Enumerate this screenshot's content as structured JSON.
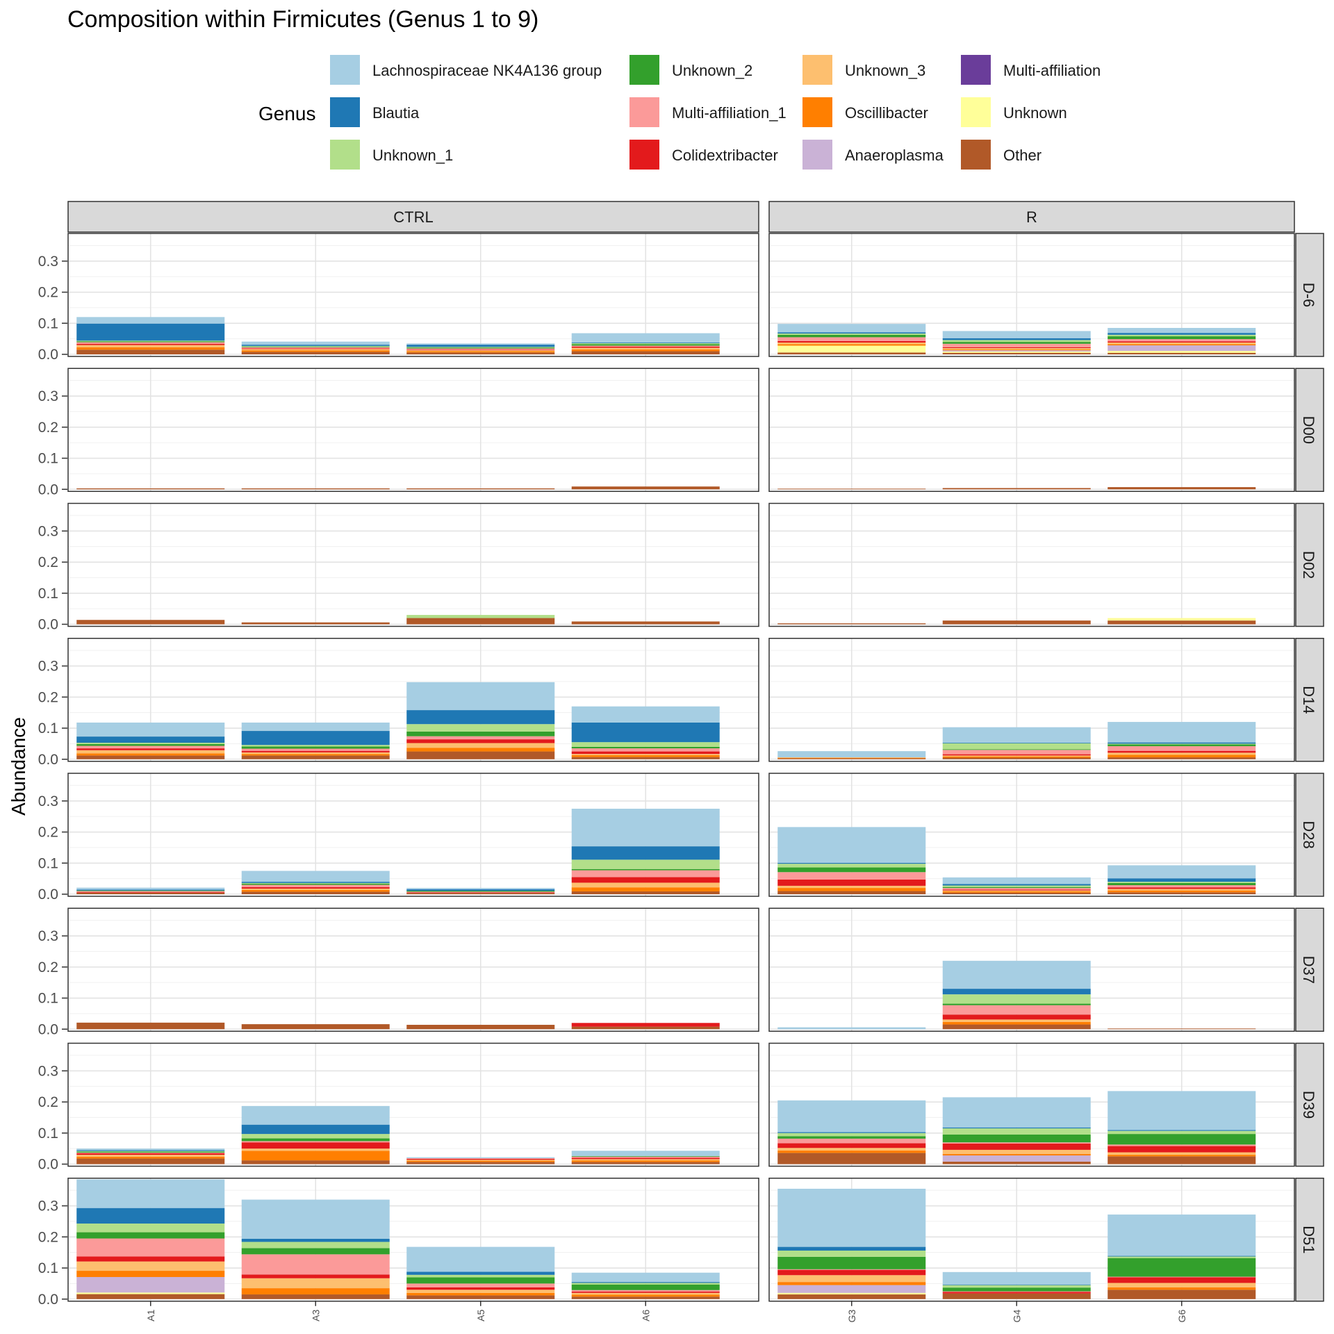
{
  "chart_data": {
    "type": "bar",
    "stacked": true,
    "title": "Composition within Firmicutes (Genus 1 to 9)",
    "ylabel": "Abundance",
    "xlabel": "",
    "ylim": [
      0,
      0.38
    ],
    "yticks": [
      0.0,
      0.1,
      0.2,
      0.3
    ],
    "yticks_text": [
      "0.0",
      "0.1",
      "0.2",
      "0.3"
    ],
    "grid": true,
    "legend": {
      "title": "Genus",
      "position": "top",
      "entries": [
        {
          "key": "lach",
          "label": "Lachnospiraceae NK4A136 group",
          "color": "#A6CEE3"
        },
        {
          "key": "blau",
          "label": "Blautia",
          "color": "#1F78B4"
        },
        {
          "key": "unk1",
          "label": "Unknown_1",
          "color": "#B2DF8A"
        },
        {
          "key": "unk2",
          "label": "Unknown_2",
          "color": "#33A02C"
        },
        {
          "key": "ma1",
          "label": "Multi-affiliation_1",
          "color": "#FB9A99"
        },
        {
          "key": "coli",
          "label": "Colidextribacter",
          "color": "#E31A1C"
        },
        {
          "key": "unk3",
          "label": "Unknown_3",
          "color": "#FDBF6F"
        },
        {
          "key": "osc",
          "label": "Oscillibacter",
          "color": "#FF7F00"
        },
        {
          "key": "anae",
          "label": "Anaeroplasma",
          "color": "#CAB2D6"
        },
        {
          "key": "ma",
          "label": "Multi-affiliation",
          "color": "#6A3D9A"
        },
        {
          "key": "unk",
          "label": "Unknown",
          "color": "#FFFF99"
        },
        {
          "key": "oth",
          "label": "Other",
          "color": "#B15928"
        }
      ]
    },
    "stack_order_bottom_up": [
      "oth",
      "unk",
      "ma",
      "anae",
      "osc",
      "unk3",
      "coli",
      "ma1",
      "unk2",
      "unk1",
      "blau",
      "lach"
    ],
    "facet_columns": [
      {
        "label": "CTRL",
        "samples": [
          "A1",
          "A3",
          "A5",
          "A6"
        ]
      },
      {
        "label": "R",
        "samples": [
          "G3",
          "G4",
          "G6"
        ]
      }
    ],
    "facet_rows": [
      "D-6",
      "D00",
      "D02",
      "D14",
      "D28",
      "D37",
      "D39",
      "D51"
    ],
    "panels": {
      "D-6": {
        "A1": {
          "oth": 0.015,
          "osc": 0.008,
          "unk3": 0.007,
          "coli": 0.004,
          "ma1": 0.005,
          "unk2": 0.003,
          "unk1": 0.002,
          "blau": 0.055,
          "lach": 0.021
        },
        "A3": {
          "oth": 0.008,
          "osc": 0.005,
          "unk3": 0.004,
          "coli": 0.002,
          "ma1": 0.004,
          "unk2": 0.002,
          "unk1": 0.002,
          "blau": 0.004,
          "lach": 0.01
        },
        "A5": {
          "oth": 0.006,
          "osc": 0.004,
          "unk3": 0.003,
          "coli": 0.002,
          "ma1": 0.004,
          "unk2": 0.003,
          "unk1": 0.002,
          "blau": 0.007,
          "lach": 0.004
        },
        "A6": {
          "oth": 0.01,
          "osc": 0.006,
          "unk3": 0.005,
          "coli": 0.004,
          "ma1": 0.003,
          "unk2": 0.005,
          "unk1": 0.003,
          "blau": 0.002,
          "lach": 0.03
        },
        "G3": {
          "oth": 0.006,
          "unk": 0.022,
          "osc": 0.005,
          "unk3": 0.005,
          "coli": 0.005,
          "ma1": 0.012,
          "unk2": 0.008,
          "unk1": 0.004,
          "blau": 0.004,
          "lach": 0.027
        },
        "G4": {
          "oth": 0.005,
          "unk": 0.004,
          "anae": 0.004,
          "osc": 0.003,
          "unk3": 0.004,
          "coli": 0.003,
          "ma1": 0.011,
          "unk2": 0.006,
          "unk1": 0.006,
          "blau": 0.006,
          "lach": 0.023
        },
        "G6": {
          "oth": 0.005,
          "unk": 0.006,
          "anae": 0.018,
          "osc": 0.004,
          "unk3": 0.005,
          "coli": 0.004,
          "ma1": 0.007,
          "unk2": 0.009,
          "unk1": 0.005,
          "blau": 0.006,
          "lach": 0.016
        }
      },
      "D00": {
        "A1": {
          "oth": 0.003
        },
        "A3": {
          "oth": 0.003
        },
        "A5": {
          "oth": 0.003
        },
        "A6": {
          "oth": 0.009
        },
        "G3": {
          "oth": 0.002
        },
        "G4": {
          "oth": 0.004
        },
        "G6": {
          "oth": 0.007
        }
      },
      "D02": {
        "A1": {
          "oth": 0.014
        },
        "A3": {
          "oth": 0.006
        },
        "A5": {
          "oth": 0.02,
          "unk1": 0.01
        },
        "A6": {
          "oth": 0.009
        },
        "G3": {
          "oth": 0.003
        },
        "G4": {
          "oth": 0.012
        },
        "G6": {
          "oth": 0.012,
          "unk": 0.008
        }
      },
      "D14": {
        "A1": {
          "oth": 0.012,
          "osc": 0.007,
          "unk3": 0.01,
          "coli": 0.006,
          "ma1": 0.008,
          "unk2": 0.006,
          "unk1": 0.004,
          "blau": 0.02,
          "lach": 0.045
        },
        "A3": {
          "oth": 0.012,
          "osc": 0.005,
          "unk3": 0.005,
          "coli": 0.005,
          "ma1": 0.007,
          "unk2": 0.007,
          "unk1": 0.005,
          "blau": 0.045,
          "lach": 0.027
        },
        "A5": {
          "oth": 0.025,
          "osc": 0.012,
          "unk3": 0.015,
          "coli": 0.012,
          "ma1": 0.01,
          "unk2": 0.015,
          "unk1": 0.024,
          "blau": 0.045,
          "lach": 0.09
        },
        "A6": {
          "oth": 0.007,
          "osc": 0.006,
          "unk3": 0.004,
          "coli": 0.008,
          "ma1": 0.01,
          "unk2": 0.005,
          "unk1": 0.015,
          "blau": 0.063,
          "lach": 0.052
        },
        "G3": {
          "oth": 0.003,
          "osc": 0.002,
          "unk3": 0.001,
          "lach": 0.02
        },
        "G4": {
          "oth": 0.005,
          "osc": 0.004,
          "unk3": 0.003,
          "coli": 0.004,
          "ma1": 0.014,
          "unk2": 0.002,
          "unk1": 0.02,
          "blau": 0.001,
          "lach": 0.05
        },
        "G6": {
          "oth": 0.006,
          "osc": 0.008,
          "unk3": 0.007,
          "coli": 0.006,
          "ma1": 0.015,
          "unk2": 0.006,
          "unk1": 0.002,
          "blau": 0.004,
          "lach": 0.066
        }
      },
      "D28": {
        "A1": {
          "oth": 0.005,
          "coli": 0.002,
          "ma1": 0.003,
          "unk2": 0.002,
          "blau": 0.003,
          "lach": 0.006
        },
        "A3": {
          "oth": 0.008,
          "osc": 0.006,
          "unk3": 0.004,
          "coli": 0.005,
          "ma1": 0.007,
          "unk2": 0.004,
          "unk1": 0.002,
          "blau": 0.004,
          "lach": 0.035
        },
        "A5": {
          "oth": 0.004,
          "coli": 0.002,
          "ma1": 0.002,
          "unk2": 0.003,
          "blau": 0.005,
          "lach": 0.004
        },
        "A6": {
          "oth": 0.009,
          "osc": 0.013,
          "unk3": 0.015,
          "coli": 0.018,
          "ma1": 0.022,
          "unk2": 0.004,
          "unk1": 0.03,
          "blau": 0.043,
          "lach": 0.121
        },
        "G3": {
          "oth": 0.01,
          "osc": 0.01,
          "unk3": 0.007,
          "coli": 0.02,
          "ma1": 0.024,
          "unk2": 0.015,
          "unk1": 0.012,
          "blau": 0.003,
          "lach": 0.115
        },
        "G4": {
          "oth": 0.005,
          "osc": 0.004,
          "unk3": 0.003,
          "coli": 0.003,
          "ma1": 0.005,
          "unk2": 0.003,
          "unk1": 0.005,
          "blau": 0.005,
          "lach": 0.021
        },
        "G6": {
          "oth": 0.006,
          "osc": 0.006,
          "unk3": 0.005,
          "coli": 0.005,
          "ma1": 0.007,
          "unk2": 0.007,
          "unk1": 0.004,
          "blau": 0.011,
          "lach": 0.042
        }
      },
      "D37": {
        "A1": {
          "oth": 0.021
        },
        "A3": {
          "oth": 0.016
        },
        "A5": {
          "oth": 0.014
        },
        "A6": {
          "oth": 0.008,
          "coli": 0.012
        },
        "G3": {
          "lach": 0.006
        },
        "G4": {
          "oth": 0.015,
          "osc": 0.008,
          "unk3": 0.008,
          "coli": 0.016,
          "ma1": 0.03,
          "unk2": 0.005,
          "unk1": 0.03,
          "blau": 0.018,
          "lach": 0.09
        },
        "G6": {
          "oth": 0.002
        }
      },
      "D39": {
        "A1": {
          "oth": 0.018,
          "osc": 0.006,
          "unk3": 0.006,
          "coli": 0.005,
          "ma1": 0.002,
          "unk2": 0.003,
          "unk1": 0.002,
          "blau": 0.003,
          "lach": 0.005
        },
        "A3": {
          "oth": 0.012,
          "osc": 0.031,
          "unk3": 0.007,
          "coli": 0.02,
          "ma1": 0.004,
          "unk2": 0.009,
          "unk1": 0.014,
          "blau": 0.03,
          "lach": 0.06
        },
        "A5": {
          "oth": 0.007,
          "osc": 0.004,
          "unk3": 0.003,
          "coli": 0.003,
          "ma1": 0.002,
          "lach": 0.003
        },
        "A6": {
          "oth": 0.007,
          "osc": 0.005,
          "unk3": 0.004,
          "coli": 0.004,
          "ma1": 0.004,
          "unk2": 0.002,
          "lach": 0.017
        },
        "G3": {
          "oth": 0.036,
          "osc": 0.008,
          "unk3": 0.008,
          "coli": 0.015,
          "ma1": 0.015,
          "unk2": 0.008,
          "unk1": 0.01,
          "blau": 0.003,
          "lach": 0.102
        },
        "G4": {
          "oth": 0.008,
          "anae": 0.02,
          "osc": 0.005,
          "unk3": 0.013,
          "coli": 0.02,
          "ma1": 0.004,
          "unk2": 0.025,
          "unk1": 0.02,
          "blau": 0.003,
          "lach": 0.097
        },
        "G6": {
          "oth": 0.025,
          "osc": 0.005,
          "unk3": 0.008,
          "coli": 0.02,
          "ma1": 0.005,
          "unk2": 0.034,
          "unk1": 0.01,
          "blau": 0.003,
          "lach": 0.125
        }
      },
      "D51": {
        "A1": {
          "oth": 0.016,
          "unk": 0.005,
          "anae": 0.05,
          "osc": 0.02,
          "unk3": 0.03,
          "coli": 0.016,
          "ma1": 0.058,
          "unk2": 0.02,
          "unk1": 0.028,
          "blau": 0.05,
          "lach": 0.092
        },
        "A3": {
          "oth": 0.015,
          "osc": 0.02,
          "unk3": 0.032,
          "coli": 0.012,
          "ma1": 0.065,
          "unk2": 0.02,
          "unk1": 0.02,
          "blau": 0.01,
          "lach": 0.126
        },
        "A5": {
          "oth": 0.012,
          "osc": 0.008,
          "unk3": 0.01,
          "coli": 0.008,
          "ma1": 0.012,
          "unk2": 0.02,
          "unk1": 0.008,
          "blau": 0.01,
          "lach": 0.08
        },
        "A6": {
          "oth": 0.008,
          "osc": 0.006,
          "unk3": 0.006,
          "coli": 0.004,
          "ma1": 0.005,
          "unk2": 0.018,
          "unk1": 0.005,
          "blau": 0.003,
          "lach": 0.03
        },
        "G3": {
          "oth": 0.015,
          "unk": 0.005,
          "anae": 0.025,
          "osc": 0.01,
          "unk3": 0.022,
          "coli": 0.017,
          "ma1": 0.002,
          "unk2": 0.04,
          "unk1": 0.02,
          "blau": 0.012,
          "lach": 0.187
        },
        "G4": {
          "oth": 0.018,
          "coli": 0.005,
          "ma1": 0.002,
          "unk2": 0.012,
          "unk1": 0.008,
          "blau": 0.002,
          "lach": 0.04
        },
        "G6": {
          "oth": 0.03,
          "osc": 0.008,
          "unk3": 0.014,
          "coli": 0.018,
          "ma1": 0.002,
          "unk2": 0.06,
          "unk1": 0.005,
          "blau": 0.002,
          "lach": 0.133
        }
      }
    }
  }
}
